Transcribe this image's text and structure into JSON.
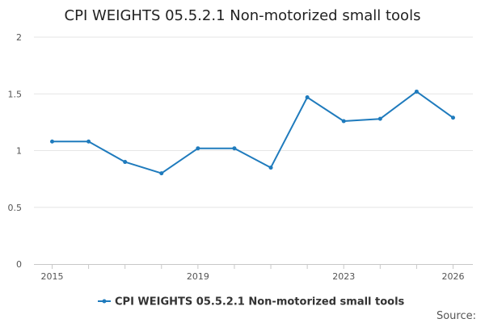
{
  "chart_data": {
    "type": "line",
    "title": "CPI WEIGHTS 05.5.2.1 Non-motorized small tools",
    "x": [
      2015,
      2016,
      2017,
      2018,
      2019,
      2020,
      2021,
      2022,
      2023,
      2024,
      2025,
      2026
    ],
    "series": [
      {
        "name": "CPI WEIGHTS 05.5.2.1 Non-motorized small tools",
        "values": [
          1.08,
          1.08,
          0.9,
          0.8,
          1.02,
          1.02,
          0.85,
          1.47,
          1.26,
          1.28,
          1.52,
          1.29
        ],
        "color": "#1f7bbd"
      }
    ],
    "x_tick_labels": [
      "2015",
      "2019",
      "2023",
      "2026"
    ],
    "y_tick_labels": [
      "0",
      "0.5",
      "1",
      "1.5",
      "2"
    ],
    "y_ticks": [
      0,
      0.5,
      1,
      1.5,
      2
    ],
    "ylim": [
      0,
      2
    ],
    "xlim": [
      2015,
      2026
    ],
    "xlabel": "",
    "ylabel": "",
    "grid": true,
    "legend": "bottom-center",
    "source_label": "Source:"
  }
}
